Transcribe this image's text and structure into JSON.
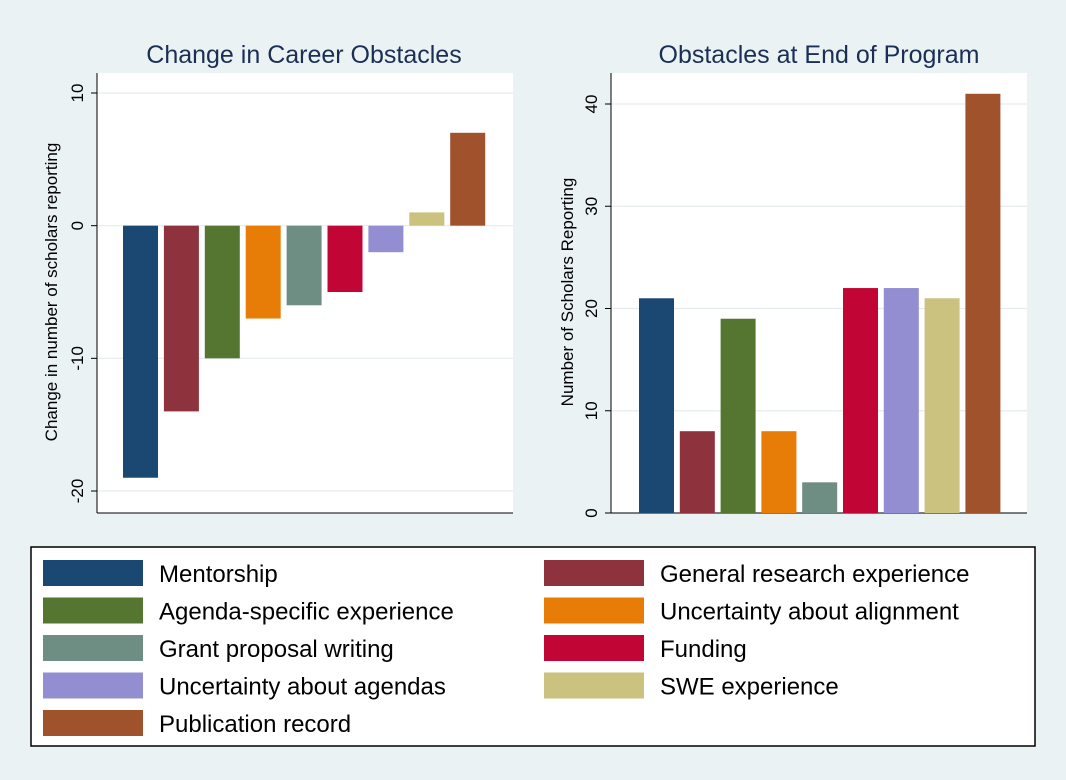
{
  "series_colors": [
    "#1b4872",
    "#8e323e",
    "#557630",
    "#e77c07",
    "#6e8e84",
    "#c10534",
    "#938dd2",
    "#cac27e",
    "#a0522d"
  ],
  "legend": {
    "items": [
      "Mentorship",
      "General research experience",
      "Agenda-specific experience",
      "Uncertainty about alignment",
      "Grant proposal writing",
      "Funding",
      "Uncertainty about agendas",
      "SWE experience",
      "Publication record"
    ]
  },
  "chart_data": [
    {
      "type": "bar",
      "title": "Change in Career Obstacles",
      "xlabel": "",
      "ylabel": "Change in number of scholars reporting",
      "categories": [
        "Mentorship",
        "General research experience",
        "Agenda-specific experience",
        "Uncertainty about alignment",
        "Grant proposal writing",
        "Funding",
        "Uncertainty about agendas",
        "SWE experience",
        "Publication record"
      ],
      "values": [
        -19,
        -14,
        -10,
        -7,
        -6,
        -5,
        -2,
        1,
        7
      ],
      "ylim": [
        -21.5,
        10
      ],
      "yticks": [
        -20,
        -10,
        0,
        10
      ],
      "ytick_labels": [
        "-20",
        "-10",
        "0",
        "10"
      ],
      "grid": true
    },
    {
      "type": "bar",
      "title": "Obstacles at End of Program",
      "xlabel": "",
      "ylabel": "Number of Scholars Reporting",
      "categories": [
        "Mentorship",
        "General research experience",
        "Agenda-specific experience",
        "Uncertainty about alignment",
        "Grant proposal writing",
        "Funding",
        "Uncertainty about agendas",
        "SWE experience",
        "Publication record"
      ],
      "values": [
        21,
        8,
        19,
        8,
        3,
        22,
        22,
        21,
        41
      ],
      "ylim": [
        0,
        42
      ],
      "yticks": [
        0,
        10,
        20,
        30,
        40
      ],
      "ytick_labels": [
        "0",
        "10",
        "20",
        "30",
        "40"
      ],
      "grid": true
    }
  ]
}
